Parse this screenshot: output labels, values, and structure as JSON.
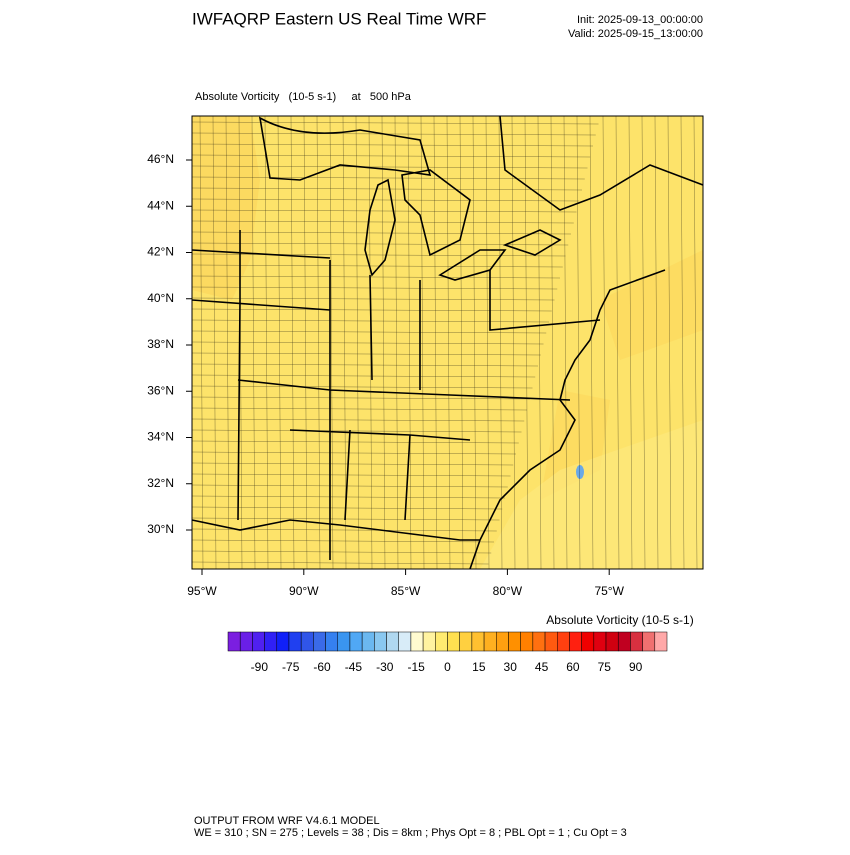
{
  "header": {
    "title": "IWFAQRP Eastern US Real Time WRF",
    "init": "Init: 2025-09-13_00:00:00",
    "valid": "Valid: 2025-09-15_13:00:00"
  },
  "plot": {
    "subtitle": "Absolute Vorticity   (10-5 s-1)     at   500 hPa",
    "lat_labels": [
      "46°N",
      "44°N",
      "42°N",
      "40°N",
      "38°N",
      "36°N",
      "34°N",
      "32°N",
      "30°N"
    ],
    "lon_labels": [
      "95°W",
      "90°W",
      "85°W",
      "80°W",
      "75°W"
    ]
  },
  "colorbar": {
    "title": "Absolute Vorticity  (10-5 s-1)",
    "range": [
      -105,
      105
    ],
    "ticks": [
      -90,
      -75,
      -60,
      -45,
      -30,
      -15,
      0,
      15,
      30,
      45,
      60,
      75,
      90
    ]
  },
  "footer": {
    "line1": "OUTPUT FROM WRF V4.6.1 MODEL",
    "line2": "WE = 310 ; SN = 275 ; Levels = 38 ; Dis = 8km ; Phys Opt = 8 ; PBL Opt = 1 ; Cu Opt = 3"
  }
}
